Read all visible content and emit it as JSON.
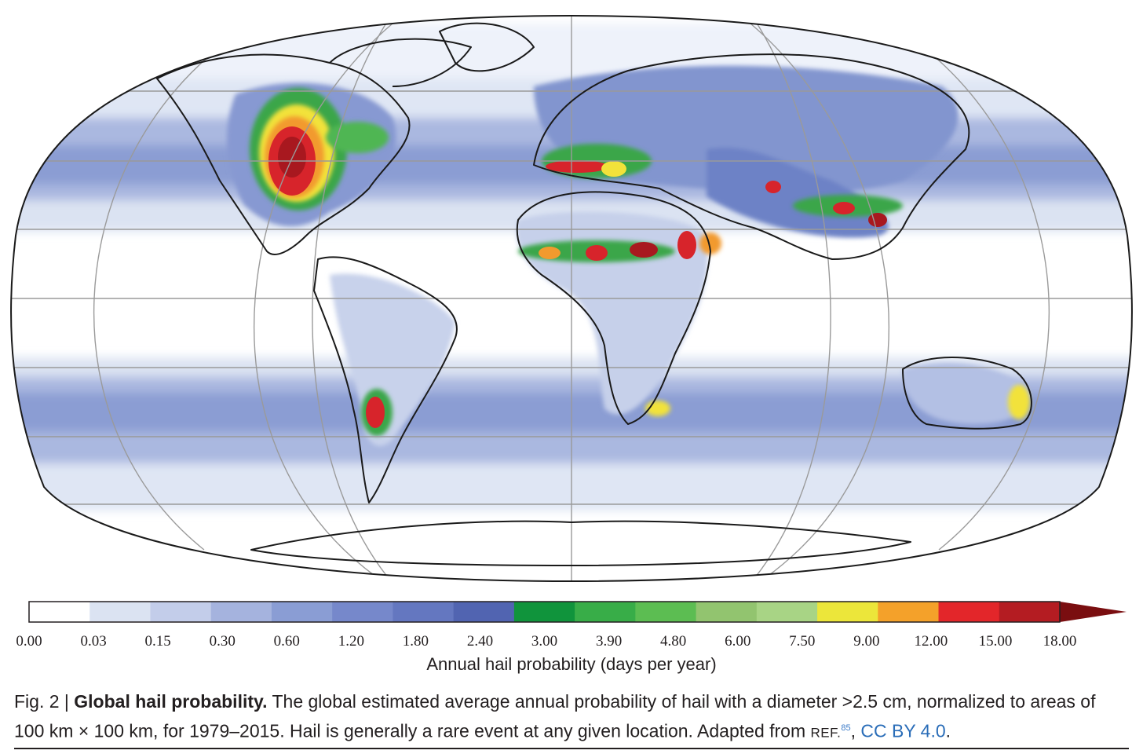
{
  "map": {
    "projection": "Robinson",
    "ocean_color": "#ffffff",
    "land_outline_color": "#1a1a1a",
    "grid_color": "#9a9a9a",
    "hotspot_colors": {
      "low_blue": "#c5d0ea",
      "mid_blue": "#7a8fcf",
      "high_blue": "#4f63b0",
      "green": "#3aa64a",
      "yellow": "#f2e23a",
      "orange": "#f29a2e",
      "red": "#d7242b",
      "dark_red": "#a8181f"
    }
  },
  "colorbar": {
    "ticks": [
      "0.00",
      "0.03",
      "0.15",
      "0.30",
      "0.60",
      "1.20",
      "1.80",
      "2.40",
      "3.00",
      "3.90",
      "4.80",
      "6.00",
      "7.50",
      "9.00",
      "12.00",
      "15.00",
      "18.00"
    ],
    "colors": [
      "#ffffff",
      "#dbe3f2",
      "#c3cdea",
      "#a5b3de",
      "#8a9dd4",
      "#7688cb",
      "#6477c0",
      "#5164b1",
      "#10943c",
      "#38ad48",
      "#5cbd52",
      "#92c46f",
      "#a8d485",
      "#ece63a",
      "#f4a12a",
      "#e3262a",
      "#b41c22"
    ],
    "extend_color": "#7a0e10",
    "label": "Annual hail probability (days per year)"
  },
  "caption": {
    "fig_num": "Fig. 2 | ",
    "title": "Global hail probability.",
    "text": " The global estimated average annual probability of hail with a diameter >2.5 cm, normalized to areas of 100 km × 100 km, for 1979–2015. Hail is generally a rare event at any given location. Adapted from ",
    "ref_label": "REF.",
    "ref_num": "85",
    "sep": ", ",
    "license": "CC BY 4.0",
    "end": "."
  }
}
